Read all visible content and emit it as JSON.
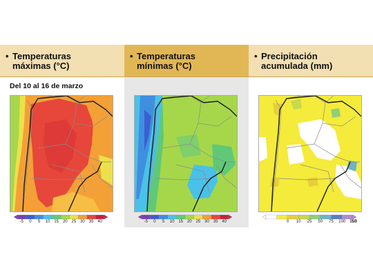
{
  "panels": [
    {
      "title_line1": "Temperaturas",
      "title_line2": "máximas (°C)",
      "colors": [
        "#7a3fb0",
        "#3b5fd0",
        "#3f8fe0",
        "#49c1e8",
        "#5fc978",
        "#a6d74a",
        "#ece14a",
        "#f3a036",
        "#e6473a",
        "#c81f3a"
      ]
    },
    {
      "title_line1": "Temperaturas",
      "title_line2": "mínimas (°C)",
      "colors": [
        "#7a3fb0",
        "#3b5fd0",
        "#3f8fe0",
        "#49c1e8",
        "#5fc978",
        "#a6d74a",
        "#ece14a",
        "#f3a036",
        "#e6473a",
        "#c81f3a"
      ]
    },
    {
      "title_line1": "Precipitación",
      "title_line2": "acumulada (mm)",
      "colors": [
        "#ffffff",
        "#f4eb3a",
        "#e7cf38",
        "#c8d94c",
        "#8fcf77",
        "#6fb3c6",
        "#5b7dc8",
        "#b28ad0"
      ]
    }
  ],
  "bullet": "•",
  "date_range": "Del 10 al 16 de marzo",
  "temp_ticks": [
    "-5",
    "0",
    "5",
    "10",
    "15",
    "20",
    "25",
    "30",
    "35",
    "40"
  ],
  "precip_ticks": [
    "0",
    "10",
    "25",
    "50",
    "75",
    "100",
    "150",
    "200"
  ]
}
